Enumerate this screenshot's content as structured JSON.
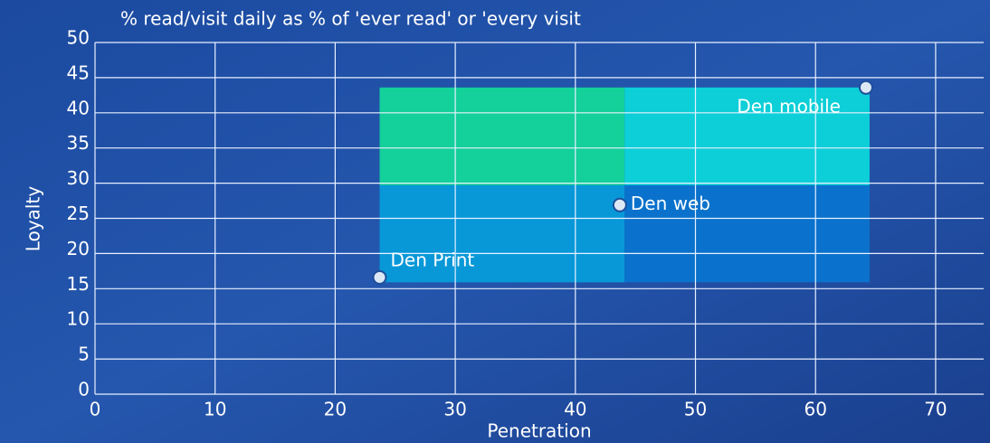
{
  "chart_data": {
    "type": "scatter",
    "title": "% read/visit daily as % of 'ever read' or 'every visit",
    "xlabel": "Penetration",
    "ylabel": "Loyalty",
    "xlim": [
      0,
      74
    ],
    "ylim": [
      0,
      50
    ],
    "xticks": [
      0,
      10,
      20,
      30,
      40,
      50,
      60,
      70
    ],
    "yticks": [
      0,
      5,
      10,
      15,
      20,
      25,
      30,
      35,
      40,
      45,
      50
    ],
    "grid": true,
    "quadrants": [
      {
        "x": [
          23.7,
          44.1
        ],
        "y": [
          29.7,
          43.6
        ],
        "color": "#14d09a"
      },
      {
        "x": [
          44.1,
          64.5
        ],
        "y": [
          29.7,
          43.6
        ],
        "color": "#0dcfd8"
      },
      {
        "x": [
          23.7,
          44.1
        ],
        "y": [
          15.9,
          29.7
        ],
        "color": "#0898d8"
      },
      {
        "x": [
          44.1,
          64.5
        ],
        "y": [
          15.9,
          29.7
        ],
        "color": "#0a72cc"
      }
    ],
    "points": {
      "labels": [
        "Den Print",
        "Den web",
        "Den mobile"
      ],
      "x": [
        23.7,
        43.7,
        64.2
      ],
      "y": [
        16.6,
        26.9,
        43.6
      ],
      "color": "#dce9f5"
    }
  }
}
